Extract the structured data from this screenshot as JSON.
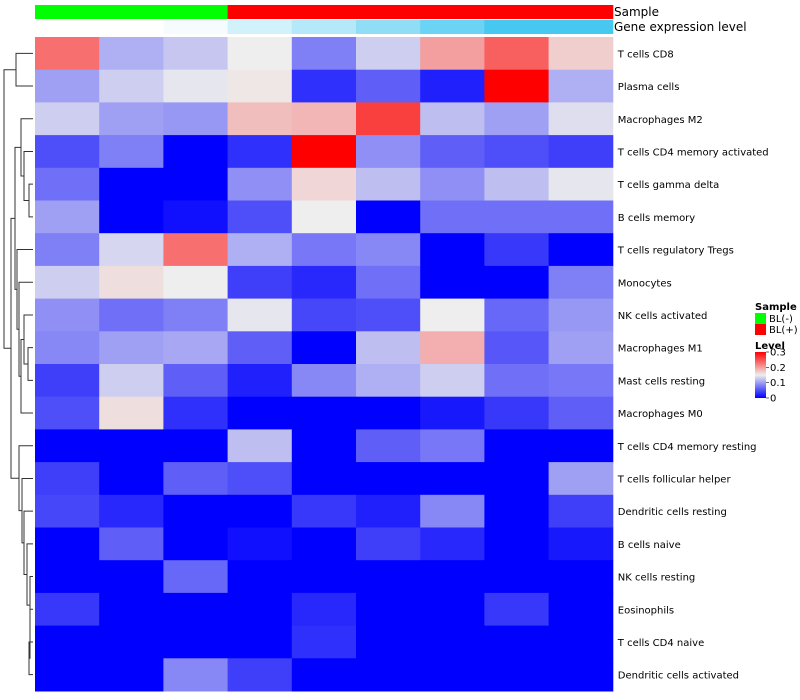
{
  "chart_data": {
    "type": "heatmap",
    "columns": 9,
    "annotations": [
      {
        "label": "Sample",
        "values": [
          "BL(-)",
          "BL(-)",
          "BL(-)",
          "BL(+)",
          "BL(+)",
          "BL(+)",
          "BL(+)",
          "BL(+)",
          "BL(+)"
        ],
        "legend": {
          "title": "Sample",
          "entries": [
            {
              "label": "BL(-)",
              "color": "#00ff00"
            },
            {
              "label": "BL(+)",
              "color": "#ff0000"
            }
          ]
        }
      },
      {
        "label": "Gene expression level",
        "values": [
          0.0,
          0.0,
          0.05,
          0.25,
          0.4,
          0.6,
          0.8,
          1.0,
          1.0
        ],
        "color_low": "#ffffff",
        "color_high": "#46c8f0"
      }
    ],
    "rows": [
      {
        "label": "T cells CD8",
        "values": [
          0.23,
          0.11,
          0.125,
          0.15,
          0.08,
          0.13,
          0.2,
          0.24,
          0.17
        ]
      },
      {
        "label": "Plasma cells",
        "values": [
          0.1,
          0.13,
          0.145,
          0.155,
          0.03,
          0.06,
          0.02,
          0.3,
          0.11
        ]
      },
      {
        "label": "Macrophages M2",
        "values": [
          0.13,
          0.1,
          0.095,
          0.18,
          0.185,
          0.26,
          0.12,
          0.1,
          0.14
        ]
      },
      {
        "label": "T cells CD4 memory activated",
        "values": [
          0.05,
          0.08,
          0.0,
          0.03,
          0.3,
          0.09,
          0.06,
          0.05,
          0.04
        ]
      },
      {
        "label": "T cells gamma delta",
        "values": [
          0.07,
          0.0,
          0.0,
          0.09,
          0.165,
          0.12,
          0.09,
          0.12,
          0.145
        ]
      },
      {
        "label": "B cells memory",
        "values": [
          0.1,
          0.0,
          0.01,
          0.05,
          0.15,
          0.0,
          0.07,
          0.07,
          0.07
        ]
      },
      {
        "label": "T cells regulatory  Tregs",
        "values": [
          0.08,
          0.135,
          0.23,
          0.11,
          0.075,
          0.085,
          0.0,
          0.035,
          0.0
        ]
      },
      {
        "label": "Monocytes",
        "values": [
          0.13,
          0.16,
          0.15,
          0.04,
          0.025,
          0.07,
          0.0,
          0.0,
          0.08
        ]
      },
      {
        "label": "NK cells activated",
        "values": [
          0.09,
          0.07,
          0.08,
          0.145,
          0.045,
          0.05,
          0.15,
          0.065,
          0.095
        ]
      },
      {
        "label": "Macrophages M1",
        "values": [
          0.085,
          0.1,
          0.105,
          0.06,
          0.0,
          0.12,
          0.19,
          0.055,
          0.1
        ]
      },
      {
        "label": "Mast cells resting",
        "values": [
          0.04,
          0.13,
          0.06,
          0.02,
          0.085,
          0.11,
          0.13,
          0.07,
          0.075
        ]
      },
      {
        "label": "Macrophages M0",
        "values": [
          0.05,
          0.16,
          0.03,
          0.0,
          0.0,
          0.0,
          0.015,
          0.035,
          0.06
        ]
      },
      {
        "label": "T cells CD4 memory resting",
        "values": [
          0.0,
          0.0,
          0.0,
          0.12,
          0.0,
          0.06,
          0.075,
          0.0,
          0.0
        ]
      },
      {
        "label": "T cells follicular helper",
        "values": [
          0.04,
          0.0,
          0.06,
          0.05,
          0.0,
          0.0,
          0.0,
          0.0,
          0.1
        ]
      },
      {
        "label": "Dendritic cells resting",
        "values": [
          0.045,
          0.025,
          0.0,
          0.0,
          0.035,
          0.02,
          0.085,
          0.0,
          0.04
        ]
      },
      {
        "label": "B cells naive",
        "values": [
          0.0,
          0.06,
          0.0,
          0.01,
          0.0,
          0.04,
          0.025,
          0.0,
          0.015
        ]
      },
      {
        "label": "NK cells resting",
        "values": [
          0.0,
          0.0,
          0.065,
          0.0,
          0.0,
          0.0,
          0.0,
          0.0,
          0.0
        ]
      },
      {
        "label": "Eosinophils",
        "values": [
          0.035,
          0.0,
          0.0,
          0.0,
          0.025,
          0.0,
          0.0,
          0.035,
          0.0
        ]
      },
      {
        "label": "T cells CD4 naive",
        "values": [
          0.0,
          0.0,
          0.0,
          0.0,
          0.03,
          0.0,
          0.0,
          0.0,
          0.0
        ]
      },
      {
        "label": "Dendritic cells activated",
        "values": [
          0.0,
          0.0,
          0.085,
          0.04,
          0.0,
          0.0,
          0.0,
          0.0,
          0.0
        ]
      }
    ],
    "color_scale": {
      "title": "Level",
      "min": 0,
      "max": 0.3,
      "ticks": [
        0.3,
        0.2,
        0.1,
        0
      ],
      "tick_labels": [
        "0.3",
        "0.2",
        "0.1",
        "0"
      ],
      "stops": [
        {
          "value": 0,
          "color": "#0000ff"
        },
        {
          "value": 0.15,
          "color": "#eeeeee"
        },
        {
          "value": 0.3,
          "color": "#ff0000"
        }
      ]
    }
  }
}
